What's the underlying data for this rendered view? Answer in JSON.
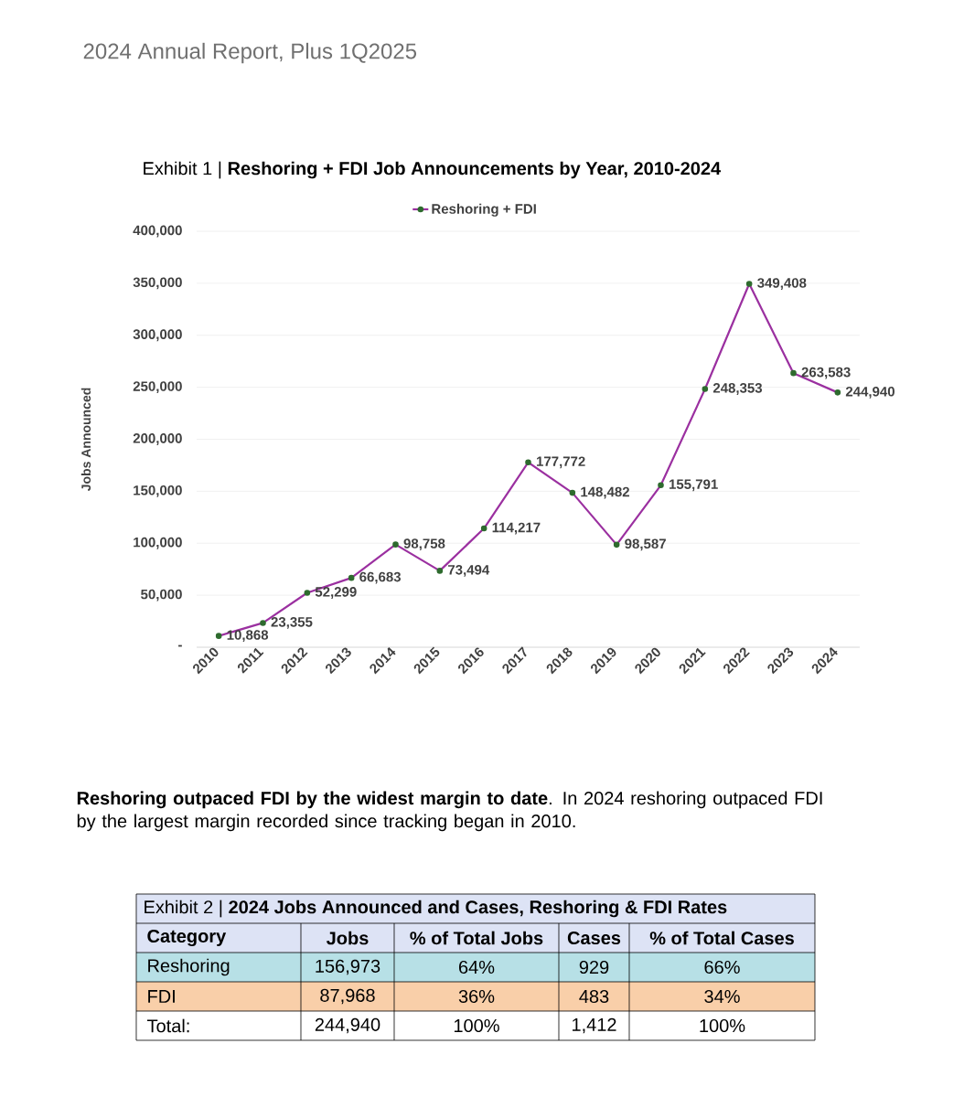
{
  "chart_data": [
    {
      "type": "line",
      "title": "Exhibit 1 | **Reshoring + FDI Job Announcements by Year, 2010-2024**",
      "ylabel": "Jobs Announced",
      "categories": [
        "2010",
        "2011",
        "2012",
        "2013",
        "2014",
        "2015",
        "2016",
        "2017",
        "2018",
        "2019",
        "2020",
        "2021",
        "2022",
        "2023",
        "2024"
      ],
      "series": [
        {
          "name": "Reshoring + FDI",
          "color": "#9b30a0",
          "values": [
            10868,
            23355,
            52299,
            66683,
            98758,
            73494,
            114217,
            177772,
            148482,
            98587,
            155791,
            248353,
            349408,
            263583,
            244940
          ],
          "value_labels": [
            "10,868",
            "23,355",
            "52,299",
            "66,683",
            "98,758",
            "73,494",
            "114,217",
            "177,772",
            "148,482",
            "98,587",
            "155,791",
            "248,353",
            "349,408",
            "263,583",
            "244,940"
          ]
        }
      ],
      "ylim": [
        0,
        400000
      ],
      "yticks": [
        {
          "value": 0,
          "label": "-"
        },
        {
          "value": 50000,
          "label": "50,000"
        },
        {
          "value": 100000,
          "label": "100,000"
        },
        {
          "value": 150000,
          "label": "150,000"
        },
        {
          "value": 200000,
          "label": "200,000"
        },
        {
          "value": 250000,
          "label": "250,000"
        },
        {
          "value": 300000,
          "label": "300,000"
        },
        {
          "value": 350000,
          "label": "350,000"
        },
        {
          "value": 400000,
          "label": "400,000"
        }
      ],
      "grid": "y",
      "legend": "top",
      "marker": "circle",
      "line_style": "solid",
      "annotations": [
        "2024 Annual Report, Plus 1Q2025",
        "**Reshoring outpaced FDI by the widest margin to date**. In 2024 reshoring outpaced FDI by the largest margin recorded since tracking began in 2010."
      ]
    },
    {
      "type": "other",
      "title": "Exhibit 2 | **2024 Jobs Announced and Cases, Reshoring & FDI Rates**",
      "categories": [
        "Category",
        "Jobs",
        "% of Total Jobs",
        "Cases",
        "% of Total Cases"
      ],
      "annotations": [
        "Reshoring",
        "156,973",
        "64%",
        "929",
        "66%",
        "FDI",
        "87,968",
        "36%",
        "483",
        "34%",
        "Total:",
        "244,940",
        "100%",
        "1,412",
        "100%"
      ]
    }
  ]
}
